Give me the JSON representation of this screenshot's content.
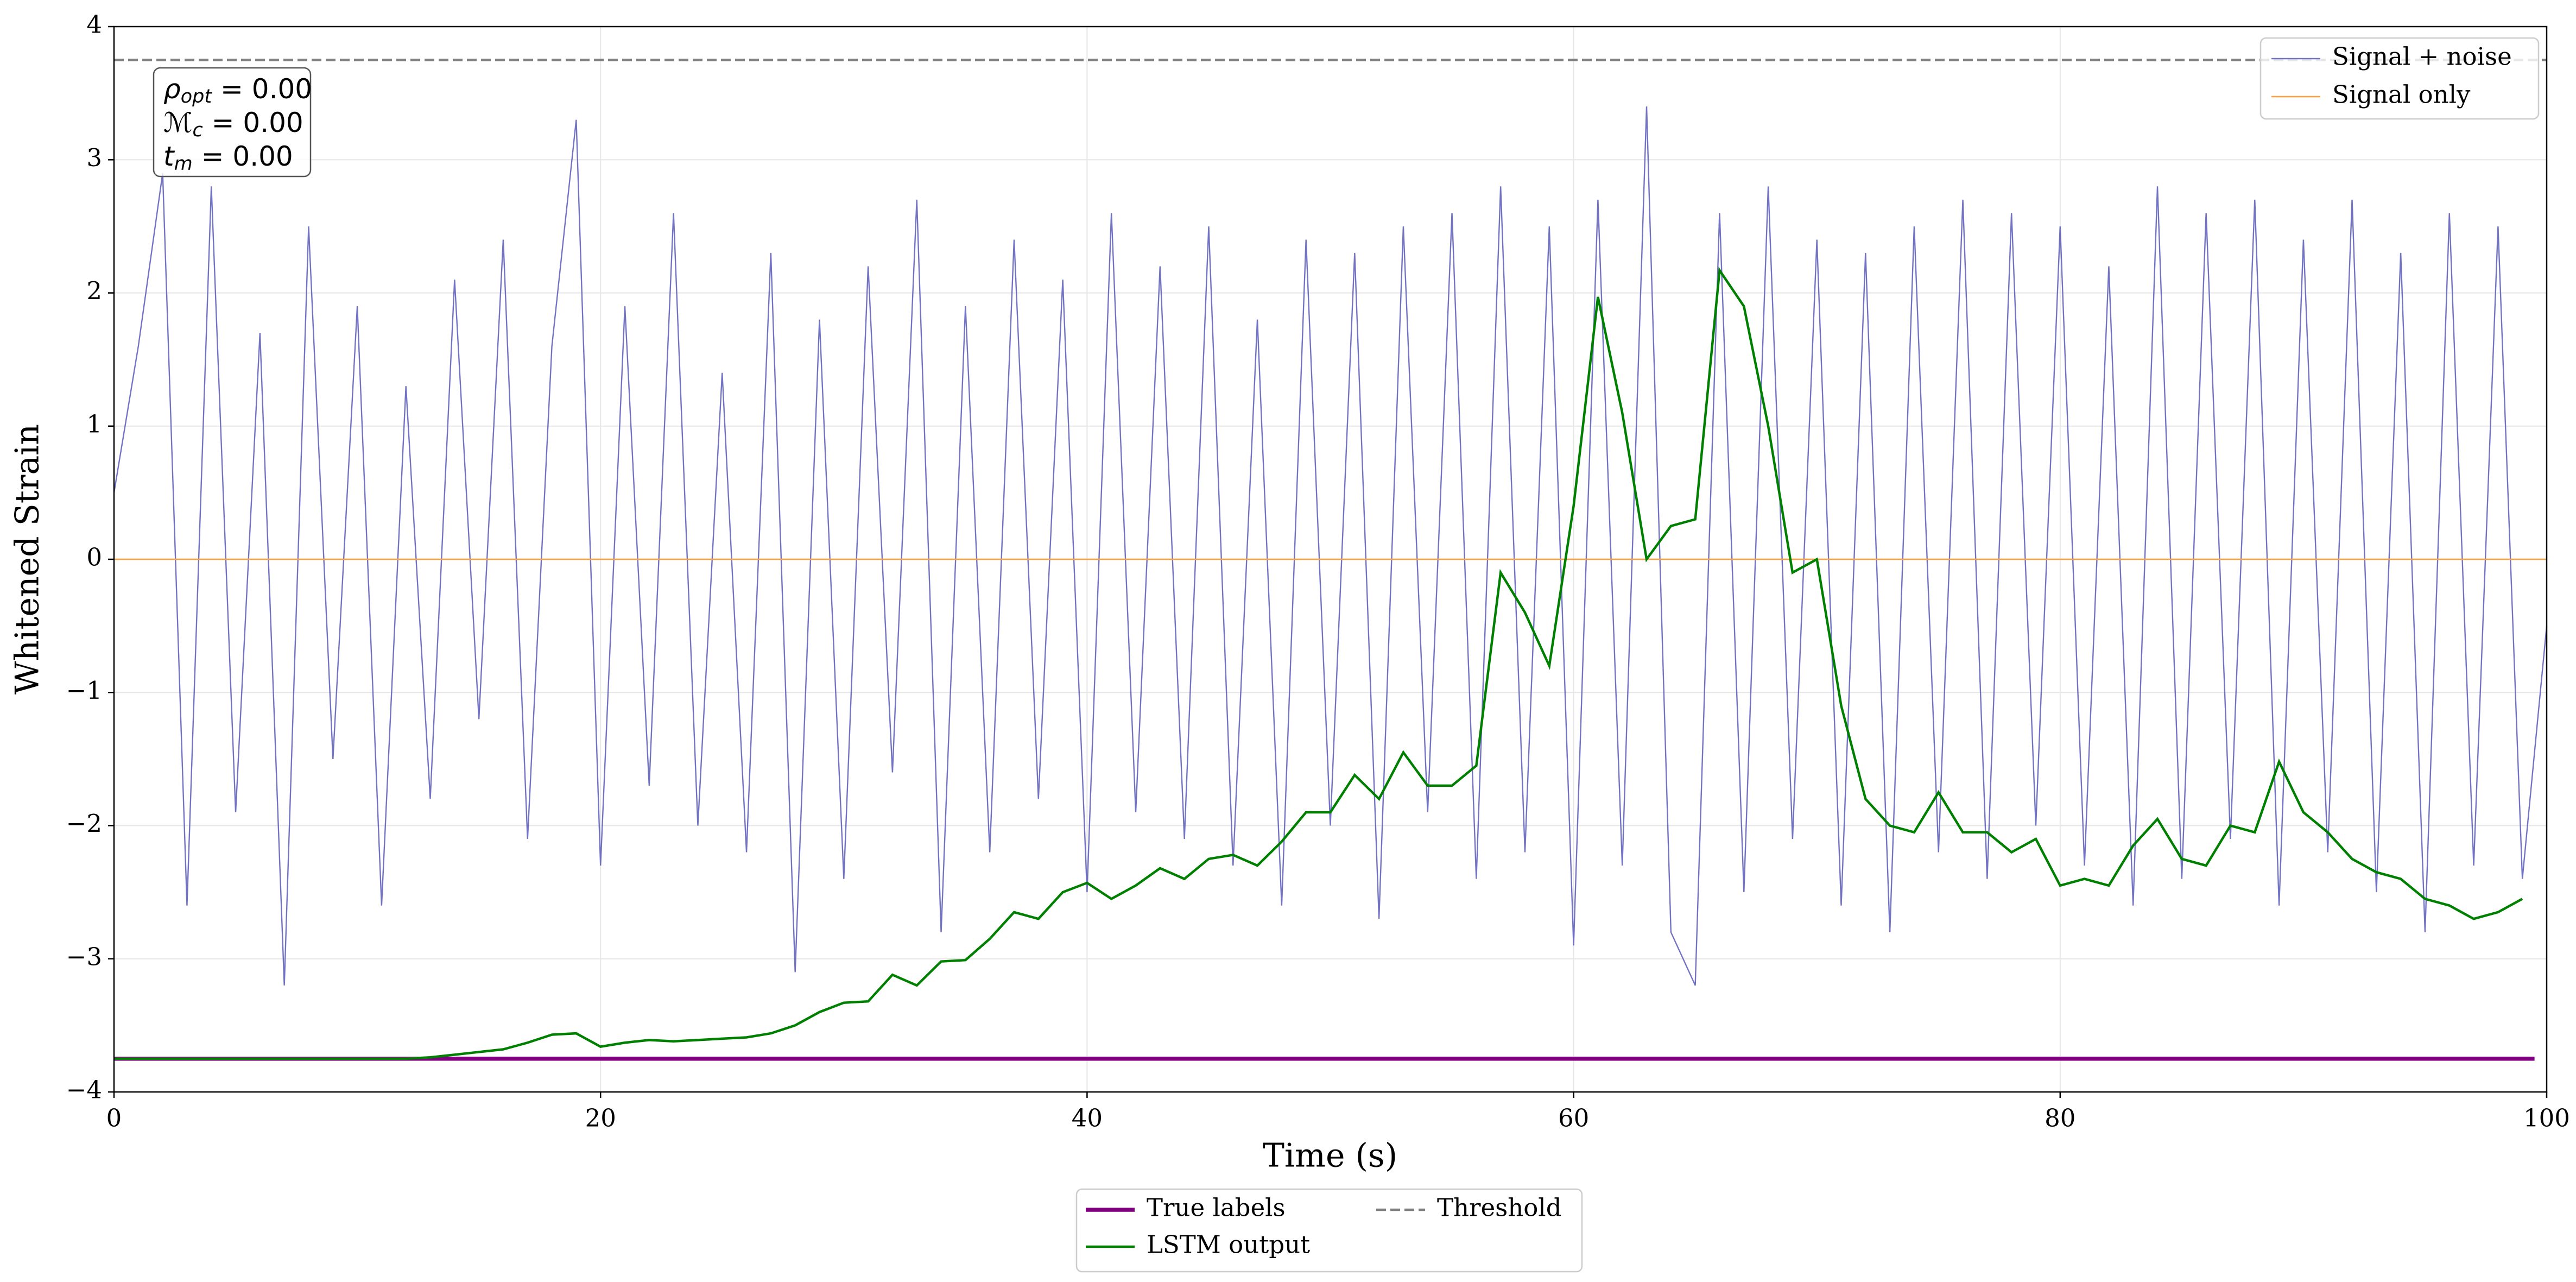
{
  "chart_data": {
    "type": "line",
    "xlabel": "Time (s)",
    "ylabel": "Whitened Strain",
    "xlim": [
      0,
      100
    ],
    "ylim": [
      -4,
      4
    ],
    "xticks": [
      0,
      20,
      40,
      60,
      80,
      100
    ],
    "yticks": [
      {
        "value": -4,
        "label": "−4"
      },
      {
        "value": -3,
        "label": "−3"
      },
      {
        "value": -2,
        "label": "−2"
      },
      {
        "value": -1,
        "label": "−1"
      },
      0,
      1,
      2,
      3,
      4
    ],
    "grid": true,
    "annotation": [
      {
        "symbol": "ρ",
        "sub": "opt",
        "text": " = 0.00"
      },
      {
        "symbol": "ℳ",
        "sub": "c",
        "text": " = 0.00"
      },
      {
        "symbol": "t",
        "sub": "m",
        "text": " = 0.00"
      }
    ],
    "series": [
      {
        "name": "Signal + noise",
        "color": "#5a5ab8",
        "linestyle": "solid",
        "legend": "upper right",
        "x": [
          0,
          1,
          2,
          3,
          4,
          5,
          6,
          7,
          8,
          9,
          10,
          11,
          12,
          13,
          14,
          15,
          16,
          17,
          18,
          19,
          20,
          21,
          22,
          23,
          24,
          25,
          26,
          27,
          28,
          29,
          30,
          31,
          32,
          33,
          34,
          35,
          36,
          37,
          38,
          39,
          40,
          41,
          42,
          43,
          44,
          45,
          46,
          47,
          48,
          49,
          50,
          51,
          52,
          53,
          54,
          55,
          56,
          57,
          58,
          59,
          60,
          61,
          62,
          63,
          64,
          65,
          66,
          67,
          68,
          69,
          70,
          71,
          72,
          73,
          74,
          75,
          76,
          77,
          78,
          79,
          80,
          81,
          82,
          83,
          84,
          85,
          86,
          87,
          88,
          89,
          90,
          91,
          92,
          93,
          94,
          95,
          96,
          97,
          98,
          99,
          100
        ],
        "values": [
          0.5,
          1.6,
          2.9,
          -2.6,
          2.8,
          -1.9,
          1.7,
          -3.2,
          2.5,
          -1.5,
          1.9,
          -2.6,
          1.3,
          -1.8,
          2.1,
          -1.2,
          2.4,
          -2.1,
          1.6,
          3.3,
          -2.3,
          1.9,
          -1.7,
          2.6,
          -2.0,
          1.4,
          -2.2,
          2.3,
          -3.1,
          1.8,
          -2.4,
          2.2,
          -1.6,
          2.7,
          -2.8,
          1.9,
          -2.2,
          2.4,
          -1.8,
          2.1,
          -2.5,
          2.6,
          -1.9,
          2.2,
          -2.1,
          2.5,
          -2.3,
          1.8,
          -2.6,
          2.4,
          -2.0,
          2.3,
          -2.7,
          2.5,
          -1.9,
          2.6,
          -2.4,
          2.8,
          -2.2,
          2.5,
          -2.9,
          2.7,
          -2.3,
          3.4,
          -2.8,
          -3.2,
          2.6,
          -2.5,
          2.8,
          -2.1,
          2.4,
          -2.6,
          2.3,
          -2.8,
          2.5,
          -2.2,
          2.7,
          -2.4,
          2.6,
          -2.0,
          2.5,
          -2.3,
          2.2,
          -2.6,
          2.8,
          -2.4,
          2.6,
          -2.1,
          2.7,
          -2.6,
          2.4,
          -2.2,
          2.7,
          -2.5,
          2.3,
          -2.8,
          2.6,
          -2.3,
          2.5,
          -2.4,
          -0.5
        ]
      },
      {
        "name": "Signal only",
        "color": "#ffa040",
        "linestyle": "solid",
        "legend": "upper right",
        "x": [
          0,
          100
        ],
        "values": [
          0,
          0
        ]
      },
      {
        "name": "True labels",
        "color": "#800080",
        "linestyle": "solid",
        "legend": "below",
        "x": [
          0,
          99.5
        ],
        "values": [
          -3.75,
          -3.75
        ]
      },
      {
        "name": "LSTM output",
        "color": "#008000",
        "linestyle": "solid",
        "legend": "below",
        "x": [
          0,
          1,
          2,
          3,
          4,
          5,
          6,
          7,
          8,
          9,
          10,
          11,
          12,
          13,
          14,
          15,
          16,
          17,
          18,
          19,
          20,
          21,
          22,
          23,
          24,
          25,
          26,
          27,
          28,
          29,
          30,
          31,
          32,
          33,
          34,
          35,
          36,
          37,
          38,
          39,
          40,
          41,
          42,
          43,
          44,
          45,
          46,
          47,
          48,
          49,
          50,
          51,
          52,
          53,
          54,
          55,
          56,
          57,
          58,
          59,
          60,
          61,
          62,
          63,
          64,
          65,
          66,
          67,
          68,
          69,
          70,
          71,
          72,
          73,
          74,
          75,
          76,
          77,
          78,
          79,
          80,
          81,
          82,
          83,
          84,
          85,
          86,
          87,
          88,
          89,
          90,
          91,
          92,
          93,
          94,
          95,
          96,
          97,
          98,
          99
        ],
        "values": [
          -3.75,
          -3.75,
          -3.75,
          -3.75,
          -3.75,
          -3.75,
          -3.75,
          -3.75,
          -3.75,
          -3.75,
          -3.75,
          -3.75,
          -3.75,
          -3.74,
          -3.72,
          -3.7,
          -3.68,
          -3.63,
          -3.57,
          -3.56,
          -3.66,
          -3.63,
          -3.61,
          -3.62,
          -3.61,
          -3.6,
          -3.59,
          -3.56,
          -3.5,
          -3.4,
          -3.33,
          -3.32,
          -3.12,
          -3.2,
          -3.02,
          -3.01,
          -2.85,
          -2.65,
          -2.7,
          -2.5,
          -2.43,
          -2.55,
          -2.45,
          -2.32,
          -2.4,
          -2.25,
          -2.22,
          -2.3,
          -2.12,
          -1.9,
          -1.9,
          -1.62,
          -1.8,
          -1.45,
          -1.7,
          -1.7,
          -1.55,
          -0.1,
          -0.4,
          -0.8,
          0.4,
          1.97,
          1.1,
          0,
          0.25,
          0.3,
          2.17,
          1.9,
          1,
          -0.1,
          0,
          -1.1,
          -1.8,
          -2,
          -2.05,
          -1.75,
          -2.05,
          -2.05,
          -2.2,
          -2.1,
          -2.45,
          -2.4,
          -2.45,
          -2.15,
          -1.95,
          -2.25,
          -2.3,
          -2,
          -2.05,
          -1.52,
          -1.9,
          -2.05,
          -2.25,
          -2.35,
          -2.4,
          -2.55,
          -2.6,
          -2.7,
          -2.65,
          -2.55
        ]
      },
      {
        "name": "Threshold",
        "color": "#808080",
        "linestyle": "dashed",
        "legend": "below",
        "x": [
          0,
          100
        ],
        "values": [
          3.75,
          3.75
        ]
      }
    ]
  }
}
